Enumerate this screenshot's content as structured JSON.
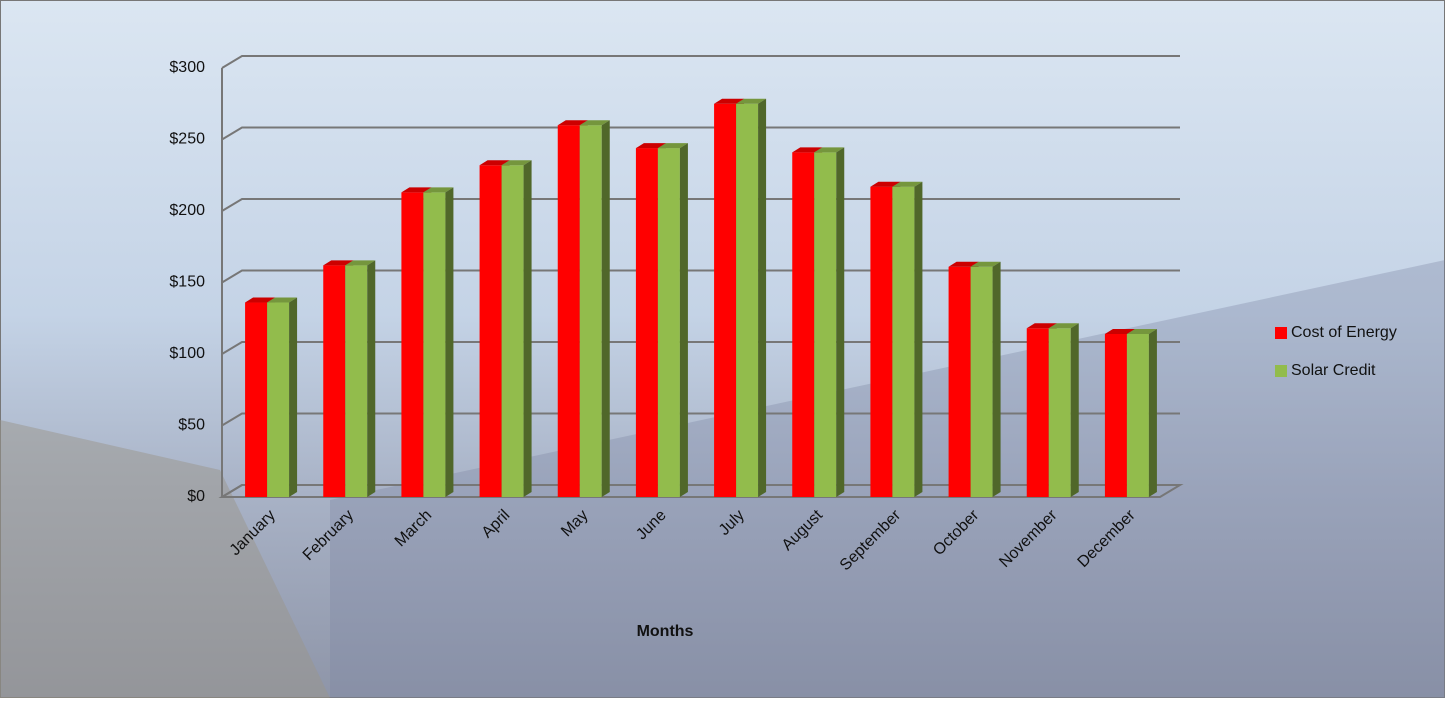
{
  "chart_data": {
    "type": "bar3d",
    "x_label": "Months",
    "categories": [
      "January",
      "February",
      "March",
      "April",
      "May",
      "June",
      "July",
      "August",
      "September",
      "October",
      "November",
      "December"
    ],
    "series": [
      {
        "name": "Cost of Energy",
        "color": "#ff0000",
        "values": [
          136,
          162,
          213,
          232,
          260,
          244,
          275,
          241,
          217,
          161,
          118,
          114
        ]
      },
      {
        "name": "Solar Credit",
        "color": "#92bc4c",
        "values": [
          136,
          162,
          213,
          232,
          260,
          244,
          275,
          241,
          217,
          161,
          118,
          114
        ]
      }
    ],
    "ylim": [
      0,
      300
    ],
    "yticks": [
      {
        "value": 0,
        "label": "$0"
      },
      {
        "value": 50,
        "label": "$50"
      },
      {
        "value": 100,
        "label": "$100"
      },
      {
        "value": 150,
        "label": "$150"
      },
      {
        "value": 200,
        "label": "$200"
      },
      {
        "value": 250,
        "label": "$250"
      },
      {
        "value": 300,
        "label": "$300"
      }
    ],
    "grid": true,
    "legend": "right"
  }
}
